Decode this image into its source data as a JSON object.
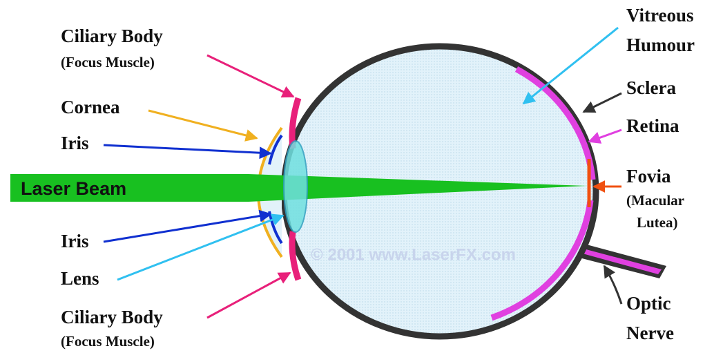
{
  "title": "Laser Beam",
  "watermark": "© 2001 www.LaserFX.com",
  "labels": {
    "ciliary_top": [
      "Ciliary Body",
      "(Focus Muscle)"
    ],
    "cornea": [
      "Cornea"
    ],
    "iris_top": [
      "Iris"
    ],
    "iris_bottom": [
      "Iris"
    ],
    "lens": [
      "Lens"
    ],
    "ciliary_bottom": [
      "Ciliary Body",
      "(Focus Muscle)"
    ],
    "vitreous": [
      "Vitreous",
      "Humour"
    ],
    "sclera": [
      "Sclera"
    ],
    "retina": [
      "Retina"
    ],
    "fovia": [
      "Fovia",
      "(Macular",
      "Lutea)"
    ],
    "optic_nerve": [
      "Optic",
      "Nerve"
    ]
  }
}
